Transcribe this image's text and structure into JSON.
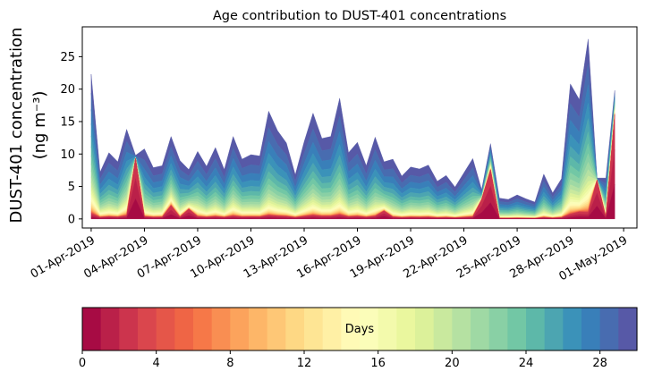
{
  "chart_data": {
    "type": "area",
    "stacked": true,
    "title": "Age contribution to DUST-401 concentrations",
    "ylabel_line1": "DUST-401 concentration",
    "ylabel_line2": "(ng m⁻³)",
    "ylim": [
      -1.4,
      29.6
    ],
    "yticks": [
      0,
      5,
      10,
      15,
      20,
      25
    ],
    "x_range_days": [
      -0.5,
      30.75
    ],
    "xtick_positions_days": [
      0,
      3,
      6,
      9,
      12,
      15,
      18,
      21,
      24,
      27,
      30
    ],
    "xtick_labels": [
      "01-Apr-2019",
      "04-Apr-2019",
      "07-Apr-2019",
      "10-Apr-2019",
      "13-Apr-2019",
      "16-Apr-2019",
      "19-Apr-2019",
      "22-Apr-2019",
      "25-Apr-2019",
      "28-Apr-2019",
      "01-May-2019"
    ],
    "sample_step_days": 0.5,
    "totals": [
      22.3,
      7.2,
      10.2,
      8.8,
      13.8,
      9.8,
      10.8,
      7.9,
      8.2,
      12.7,
      9.0,
      7.6,
      10.4,
      8.1,
      11.0,
      7.6,
      12.7,
      9.2,
      9.9,
      9.7,
      16.6,
      13.6,
      11.7,
      6.8,
      11.9,
      16.3,
      12.4,
      12.7,
      18.6,
      10.2,
      11.8,
      8.2,
      12.6,
      8.8,
      9.2,
      6.6,
      8.0,
      7.7,
      8.3,
      5.8,
      6.7,
      4.9,
      7.1,
      9.3,
      4.5,
      11.6,
      3.2,
      3.0,
      3.7,
      3.1,
      2.6,
      6.9,
      4.0,
      6.2,
      20.8,
      18.4,
      27.7,
      6.3,
      6.3,
      19.8
    ],
    "old_age_fraction": [
      0.28,
      0.48,
      0.58,
      0.62,
      0.35,
      0.6,
      0.62,
      0.62,
      0.55,
      0.45,
      0.6,
      0.62,
      0.45,
      0.58,
      0.55,
      0.62,
      0.42,
      0.55,
      0.6,
      0.6,
      0.55,
      0.6,
      0.6,
      0.55,
      0.55,
      0.5,
      0.55,
      0.55,
      0.5,
      0.6,
      0.55,
      0.6,
      0.55,
      0.62,
      0.65,
      0.65,
      0.6,
      0.62,
      0.6,
      0.62,
      0.6,
      0.62,
      0.55,
      0.55,
      0.6,
      0.25,
      0.65,
      0.6,
      0.65,
      0.65,
      0.6,
      0.6,
      0.6,
      0.55,
      0.45,
      0.55,
      0.35,
      0.45,
      0.4,
      0.12
    ],
    "young_peaks": [
      {
        "day": 2.5,
        "value": 9.5
      },
      {
        "day": 4.5,
        "value": 2.0
      },
      {
        "day": 5.5,
        "value": 1.5
      },
      {
        "day": 16.5,
        "value": 1.2
      },
      {
        "day": 22.0,
        "value": 3.0
      },
      {
        "day": 22.5,
        "value": 7.5
      },
      {
        "day": 27.5,
        "value": 1.0
      },
      {
        "day": 28.5,
        "value": 10.0
      },
      {
        "day": 29.5,
        "value": 16.0
      }
    ],
    "colorbar": {
      "label": "Days",
      "min": 0,
      "max": 30,
      "bands": 30,
      "ticks": [
        0,
        4,
        8,
        12,
        16,
        20,
        24,
        28
      ],
      "palette": [
        "#9e0142",
        "#d53e4f",
        "#f46d43",
        "#fdae61",
        "#fee08b",
        "#ffffbf",
        "#e6f598",
        "#abdda4",
        "#66c2a5",
        "#3288bd",
        "#5e4fa2"
      ]
    }
  }
}
